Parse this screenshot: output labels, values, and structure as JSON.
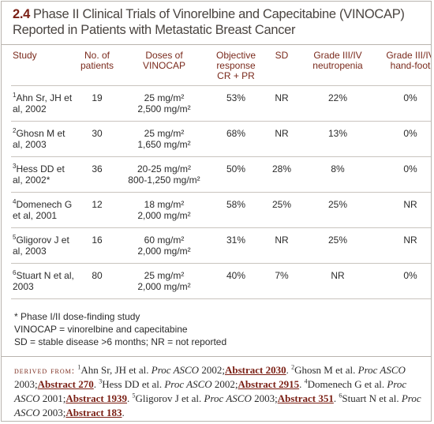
{
  "header": {
    "number": "2.4",
    "title": "Phase II Clinical Trials of Vinorelbine and Capecitabine (VINOCAP) Reported in Patients with Metastatic Breast Cancer"
  },
  "table": {
    "columns": [
      [
        "Study"
      ],
      [
        "No. of",
        "patients"
      ],
      [
        "Doses of",
        "VINOCAP"
      ],
      [
        "Objective",
        "response",
        "CR + PR"
      ],
      [
        "SD"
      ],
      [
        "Grade III/IV",
        "neutropenia"
      ],
      [
        "Grade III/IV",
        "hand-foot"
      ]
    ],
    "rows": [
      {
        "ref": "1",
        "study": "Ahn Sr, JH et al, 2002",
        "patients": "19",
        "doses": [
          "25 mg/m²",
          "2,500 mg/m²"
        ],
        "response": "53%",
        "sd": "NR",
        "neutropenia": "22%",
        "hand_foot": "0%"
      },
      {
        "ref": "2",
        "study": "Ghosn M et al, 2003",
        "patients": "30",
        "doses": [
          "25 mg/m²",
          "1,650 mg/m²"
        ],
        "response": "68%",
        "sd": "NR",
        "neutropenia": "13%",
        "hand_foot": "0%"
      },
      {
        "ref": "3",
        "study": "Hess DD et al, 2002*",
        "patients": "36",
        "doses": [
          "20-25 mg/m²",
          "800-1,250 mg/m²"
        ],
        "response": "50%",
        "sd": "28%",
        "neutropenia": "8%",
        "hand_foot": "0%"
      },
      {
        "ref": "4",
        "study": "Domenech G et al, 2001",
        "patients": "12",
        "doses": [
          "18 mg/m²",
          "2,000 mg/m²"
        ],
        "response": "58%",
        "sd": "25%",
        "neutropenia": "25%",
        "hand_foot": "NR"
      },
      {
        "ref": "5",
        "study": "Gligorov J et al, 2003",
        "patients": "16",
        "doses": [
          "60 mg/m²",
          "2,000 mg/m²"
        ],
        "response": "31%",
        "sd": "NR",
        "neutropenia": "25%",
        "hand_foot": "NR"
      },
      {
        "ref": "6",
        "study": "Stuart N et al, 2003",
        "patients": "80",
        "doses": [
          "25 mg/m²",
          "2,000 mg/m²"
        ],
        "response": "40%",
        "sd": "7%",
        "neutropenia": "NR",
        "hand_foot": "0%"
      }
    ]
  },
  "footnotes": [
    "* Phase I/II dose-finding study",
    "VINOCAP = vinorelbine and capecitabine",
    "SD = stable disease  >6 months; NR = not reported"
  ],
  "derived": {
    "label": "Derived from:",
    "refs": [
      {
        "num": "1",
        "authors": "Ahn Sr, JH et al. ",
        "journal": "Proc ASCO",
        "year": " 2002;",
        "abstract": "Abstract 2030",
        "end": ". "
      },
      {
        "num": "2",
        "authors": "Ghosn M et al. ",
        "journal": "Proc ASCO",
        "year": " 2003;",
        "abstract": "Abstract 270",
        "end": ". "
      },
      {
        "num": "3",
        "authors": "Hess DD et al. ",
        "journal": "Proc ASCO",
        "year": " 2002;",
        "abstract": "Abstract 2915",
        "end": ". "
      },
      {
        "num": "4",
        "authors": "Domenech G et al. ",
        "journal": "Proc ASCO",
        "year": " 2001;",
        "abstract": "Abstract 1939",
        "end": ". "
      },
      {
        "num": "5",
        "authors": "Gligorov J et al. ",
        "journal": "Proc ASCO",
        "year": " 2003;",
        "abstract": "Abstract 351",
        "end": ". "
      },
      {
        "num": "6",
        "authors": "Stuart N et al. ",
        "journal": "Proc ASCO",
        "year": " 2003;",
        "abstract": "Abstract 183",
        "end": "."
      }
    ]
  }
}
